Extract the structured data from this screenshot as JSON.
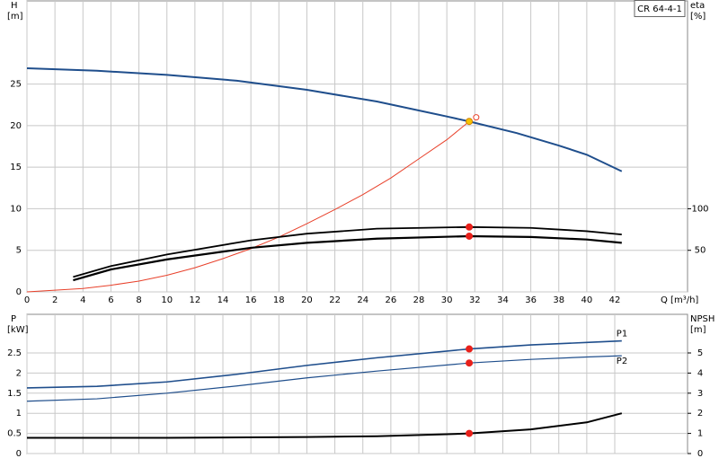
{
  "title": "CR 64-4-1",
  "chart_data": [
    {
      "type": "line",
      "ylabel": [
        "H",
        "[m]"
      ],
      "y2label": [
        "eta",
        "[%]"
      ],
      "xlabel": "Q [m³/h]",
      "xlim": [
        0,
        47.2
      ],
      "ylim": [
        0,
        35
      ],
      "y2lim": [
        0,
        350
      ],
      "xticks": [
        0,
        2,
        4,
        6,
        8,
        10,
        12,
        14,
        16,
        18,
        20,
        22,
        24,
        26,
        28,
        30,
        32,
        34,
        36,
        38,
        40,
        42
      ],
      "yticks": [
        0,
        5,
        10,
        15,
        20,
        25
      ],
      "y2ticks": [
        50,
        100
      ],
      "grid": true,
      "xtick_labels": true,
      "series": [
        {
          "color": "#1f4e8c",
          "width": 2,
          "x": [
            0,
            5,
            10,
            15,
            20,
            25,
            30,
            31.6,
            35,
            38,
            40,
            42.5
          ],
          "values": [
            26.9,
            26.6,
            26.1,
            25.4,
            24.3,
            22.9,
            21.1,
            20.5,
            19.1,
            17.6,
            16.5,
            14.5
          ]
        },
        {
          "color": "#e8402a",
          "width": 1,
          "axis": "y2",
          "x": [
            0,
            4,
            6,
            8,
            10,
            12,
            14,
            16,
            18,
            20,
            22,
            24,
            26,
            28,
            30,
            31.6
          ],
          "values": [
            0,
            4,
            8,
            13,
            20,
            29,
            40,
            52,
            66,
            82,
            99,
            117,
            137,
            160,
            183,
            205
          ]
        },
        {
          "color": "#000000",
          "width": 1.8,
          "axis": "y2",
          "x": [
            3.3,
            6,
            10,
            16,
            20,
            25,
            31.6,
            36,
            40,
            42.5
          ],
          "values": [
            18,
            31,
            45,
            62,
            70,
            76,
            78,
            77,
            73,
            69
          ]
        },
        {
          "color": "#000000",
          "width": 2.2,
          "axis": "y2",
          "x": [
            3.3,
            6,
            10,
            16,
            20,
            25,
            31.6,
            36,
            40,
            42.5
          ],
          "values": [
            14,
            27,
            39,
            53,
            59,
            64,
            67,
            66,
            63,
            59
          ]
        }
      ],
      "markers": [
        {
          "x": 31.6,
          "y": 20.5,
          "color": "#f5c400"
        },
        {
          "x": 32.1,
          "y": 21,
          "color": "none"
        },
        {
          "x": 31.6,
          "y": 7.8,
          "color": "#e8201a"
        },
        {
          "x": 31.6,
          "y": 6.7,
          "color": "#e8201a"
        }
      ]
    },
    {
      "type": "line",
      "ylabel": [
        "P",
        "[kW]"
      ],
      "y2label": [
        "NPSH",
        "[m]"
      ],
      "xlim": [
        0,
        47.2
      ],
      "ylim": [
        0,
        3.46
      ],
      "y2lim": [
        0,
        6.92
      ],
      "xticks": [
        0,
        2,
        4,
        6,
        8,
        10,
        12,
        14,
        16,
        18,
        20,
        22,
        24,
        26,
        28,
        30,
        32,
        34,
        36,
        38,
        40,
        42
      ],
      "yticks": [
        0,
        0.5,
        1.0,
        1.5,
        2.0,
        2.5
      ],
      "y2ticks": [
        0,
        1,
        2,
        3,
        4,
        5
      ],
      "grid": true,
      "xtick_labels": false,
      "series": [
        {
          "name": "P1",
          "color": "#1f4e8c",
          "width": 1.6,
          "x": [
            0,
            5,
            10,
            15,
            20,
            25,
            31.6,
            36,
            40,
            42.5
          ],
          "values": [
            1.63,
            1.67,
            1.78,
            1.97,
            2.19,
            2.38,
            2.6,
            2.7,
            2.76,
            2.8
          ]
        },
        {
          "name": "P2",
          "color": "#1f4e8c",
          "width": 1.2,
          "x": [
            0,
            5,
            10,
            15,
            20,
            25,
            31.6,
            36,
            40,
            42.5
          ],
          "values": [
            1.3,
            1.36,
            1.5,
            1.68,
            1.88,
            2.05,
            2.25,
            2.34,
            2.4,
            2.43
          ]
        },
        {
          "color": "#000000",
          "width": 2,
          "axis": "y2",
          "x": [
            0,
            10,
            20,
            25,
            30,
            31.6,
            36,
            40,
            42.5
          ],
          "values": [
            0.78,
            0.78,
            0.82,
            0.86,
            0.96,
            1.0,
            1.2,
            1.55,
            2.0
          ]
        }
      ],
      "markers": [
        {
          "x": 31.6,
          "y": 2.6,
          "color": "#e8201a"
        },
        {
          "x": 31.6,
          "y": 2.25,
          "color": "#e8201a"
        },
        {
          "x": 31.6,
          "y": 0.5,
          "color": "#e8201a"
        }
      ]
    }
  ]
}
